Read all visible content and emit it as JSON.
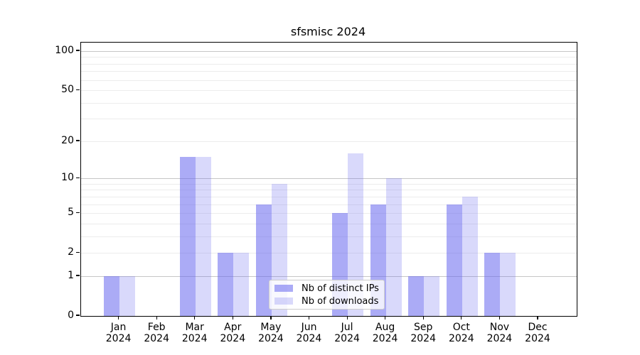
{
  "figure": {
    "title": "sfsmisc 2024"
  },
  "chart_data": {
    "type": "bar",
    "title": "sfsmisc 2024",
    "categories": [
      "Jan",
      "Feb",
      "Mar",
      "Apr",
      "May",
      "Jun",
      "Jul",
      "Aug",
      "Sep",
      "Oct",
      "Nov",
      "Dec"
    ],
    "year_label": "2024",
    "series": [
      {
        "name": "Nb of distinct IPs",
        "color": "rgba(102,102,238,0.55)",
        "values": [
          1,
          0,
          15,
          2,
          6,
          0,
          5,
          6,
          1,
          6,
          2,
          0
        ]
      },
      {
        "name": "Nb of downloads",
        "color": "rgba(102,102,238,0.25)",
        "values": [
          1,
          0,
          15,
          2,
          9,
          0,
          16,
          10,
          1,
          7,
          2,
          0
        ]
      }
    ],
    "xlabel": "",
    "ylabel": "",
    "yscale": "log1p",
    "ylim": [
      0,
      116
    ],
    "y_ticks": [
      0,
      1,
      2,
      5,
      10,
      20,
      50,
      100
    ],
    "grid": {
      "major_values": [
        1,
        10,
        100
      ],
      "minor_values": [
        2,
        3,
        4,
        5,
        6,
        7,
        8,
        9,
        20,
        30,
        40,
        50,
        60,
        70,
        80,
        90
      ],
      "major_color": "#c6c6c6",
      "minor_color": "#ececec"
    },
    "legend_position": "lower center",
    "grid_on": true
  }
}
